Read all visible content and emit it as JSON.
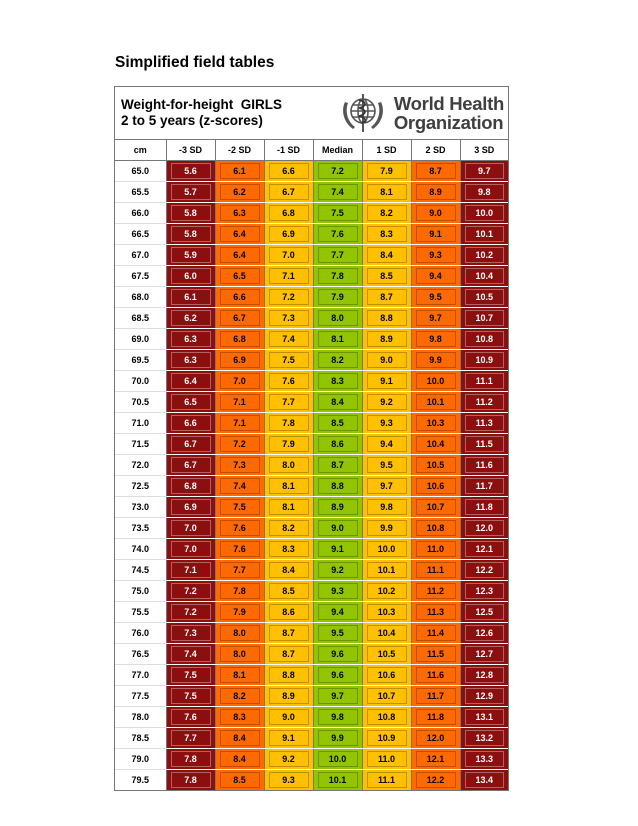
{
  "page_title": "Simplified field tables",
  "header": {
    "line1": "Weight-for-height  GIRLS",
    "line2": "2 to 5 years (z-scores)"
  },
  "logo": {
    "line1": "World Health",
    "line2": "Organization",
    "emblem": "who-emblem-icon"
  },
  "columns": [
    "cm",
    "-3 SD",
    "-2 SD",
    "-1 SD",
    "Median",
    "1 SD",
    "2 SD",
    "3 SD"
  ],
  "colors": {
    "sd3": "#8b0f0f",
    "sd2": "#ff6a00",
    "sd1": "#ffc000",
    "median": "#92c400"
  },
  "rows": [
    [
      "65.0",
      "5.6",
      "6.1",
      "6.6",
      "7.2",
      "7.9",
      "8.7",
      "9.7"
    ],
    [
      "65.5",
      "5.7",
      "6.2",
      "6.7",
      "7.4",
      "8.1",
      "8.9",
      "9.8"
    ],
    [
      "66.0",
      "5.8",
      "6.3",
      "6.8",
      "7.5",
      "8.2",
      "9.0",
      "10.0"
    ],
    [
      "66.5",
      "5.8",
      "6.4",
      "6.9",
      "7.6",
      "8.3",
      "9.1",
      "10.1"
    ],
    [
      "67.0",
      "5.9",
      "6.4",
      "7.0",
      "7.7",
      "8.4",
      "9.3",
      "10.2"
    ],
    [
      "67.5",
      "6.0",
      "6.5",
      "7.1",
      "7.8",
      "8.5",
      "9.4",
      "10.4"
    ],
    [
      "68.0",
      "6.1",
      "6.6",
      "7.2",
      "7.9",
      "8.7",
      "9.5",
      "10.5"
    ],
    [
      "68.5",
      "6.2",
      "6.7",
      "7.3",
      "8.0",
      "8.8",
      "9.7",
      "10.7"
    ],
    [
      "69.0",
      "6.3",
      "6.8",
      "7.4",
      "8.1",
      "8.9",
      "9.8",
      "10.8"
    ],
    [
      "69.5",
      "6.3",
      "6.9",
      "7.5",
      "8.2",
      "9.0",
      "9.9",
      "10.9"
    ],
    [
      "70.0",
      "6.4",
      "7.0",
      "7.6",
      "8.3",
      "9.1",
      "10.0",
      "11.1"
    ],
    [
      "70.5",
      "6.5",
      "7.1",
      "7.7",
      "8.4",
      "9.2",
      "10.1",
      "11.2"
    ],
    [
      "71.0",
      "6.6",
      "7.1",
      "7.8",
      "8.5",
      "9.3",
      "10.3",
      "11.3"
    ],
    [
      "71.5",
      "6.7",
      "7.2",
      "7.9",
      "8.6",
      "9.4",
      "10.4",
      "11.5"
    ],
    [
      "72.0",
      "6.7",
      "7.3",
      "8.0",
      "8.7",
      "9.5",
      "10.5",
      "11.6"
    ],
    [
      "72.5",
      "6.8",
      "7.4",
      "8.1",
      "8.8",
      "9.7",
      "10.6",
      "11.7"
    ],
    [
      "73.0",
      "6.9",
      "7.5",
      "8.1",
      "8.9",
      "9.8",
      "10.7",
      "11.8"
    ],
    [
      "73.5",
      "7.0",
      "7.6",
      "8.2",
      "9.0",
      "9.9",
      "10.8",
      "12.0"
    ],
    [
      "74.0",
      "7.0",
      "7.6",
      "8.3",
      "9.1",
      "10.0",
      "11.0",
      "12.1"
    ],
    [
      "74.5",
      "7.1",
      "7.7",
      "8.4",
      "9.2",
      "10.1",
      "11.1",
      "12.2"
    ],
    [
      "75.0",
      "7.2",
      "7.8",
      "8.5",
      "9.3",
      "10.2",
      "11.2",
      "12.3"
    ],
    [
      "75.5",
      "7.2",
      "7.9",
      "8.6",
      "9.4",
      "10.3",
      "11.3",
      "12.5"
    ],
    [
      "76.0",
      "7.3",
      "8.0",
      "8.7",
      "9.5",
      "10.4",
      "11.4",
      "12.6"
    ],
    [
      "76.5",
      "7.4",
      "8.0",
      "8.7",
      "9.6",
      "10.5",
      "11.5",
      "12.7"
    ],
    [
      "77.0",
      "7.5",
      "8.1",
      "8.8",
      "9.6",
      "10.6",
      "11.6",
      "12.8"
    ],
    [
      "77.5",
      "7.5",
      "8.2",
      "8.9",
      "9.7",
      "10.7",
      "11.7",
      "12.9"
    ],
    [
      "78.0",
      "7.6",
      "8.3",
      "9.0",
      "9.8",
      "10.8",
      "11.8",
      "13.1"
    ],
    [
      "78.5",
      "7.7",
      "8.4",
      "9.1",
      "9.9",
      "10.9",
      "12.0",
      "13.2"
    ],
    [
      "79.0",
      "7.8",
      "8.4",
      "9.2",
      "10.0",
      "11.0",
      "12.1",
      "13.3"
    ],
    [
      "79.5",
      "7.8",
      "8.5",
      "9.3",
      "10.1",
      "11.1",
      "12.2",
      "13.4"
    ]
  ]
}
